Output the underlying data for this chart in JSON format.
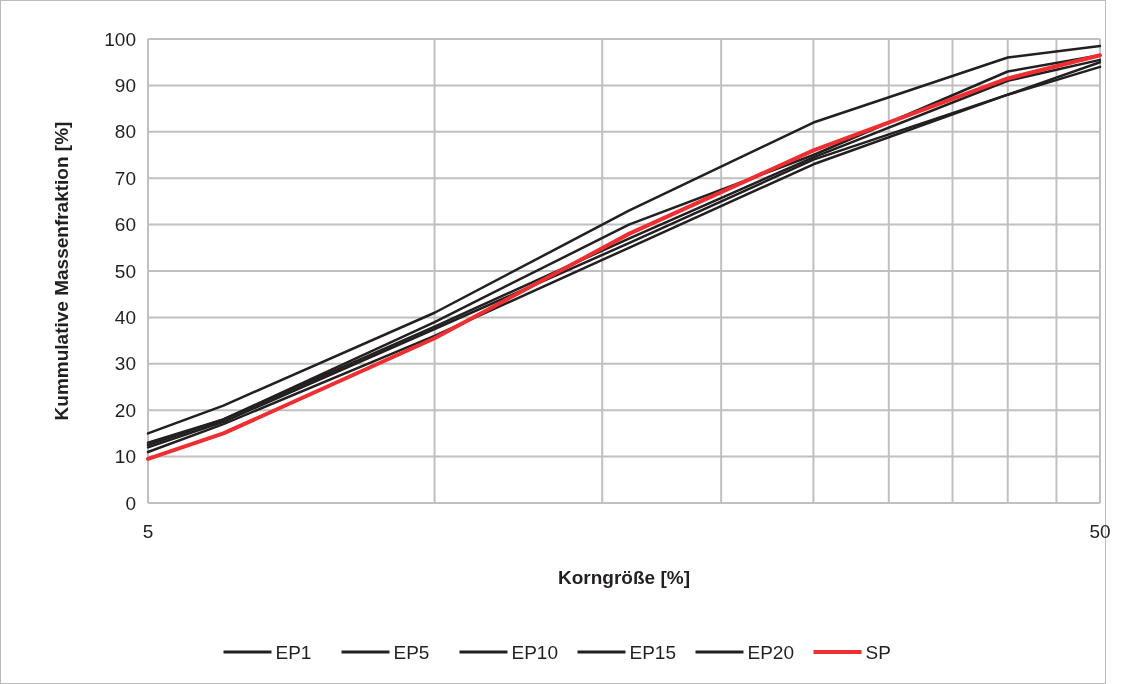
{
  "chart_data": {
    "type": "line",
    "xlabel": "Korngröße [%]",
    "ylabel": "Kummulative Massenfraktion [%]",
    "x": [
      5,
      6,
      10,
      16,
      25,
      40,
      50
    ],
    "series": [
      {
        "name": "EP1",
        "color": "#231f20",
        "values": [
          15,
          21,
          41,
          63,
          82,
          96,
          98.5
        ]
      },
      {
        "name": "EP5",
        "color": "#231f20",
        "values": [
          13,
          18,
          39,
          60,
          75,
          93,
          96.5
        ]
      },
      {
        "name": "EP10",
        "color": "#231f20",
        "values": [
          12,
          17.5,
          37.5,
          56,
          74,
          88,
          95
        ]
      },
      {
        "name": "EP15",
        "color": "#231f20",
        "values": [
          11,
          17,
          36,
          55,
          73,
          88,
          94
        ]
      },
      {
        "name": "EP20",
        "color": "#231f20",
        "values": [
          12.5,
          18,
          38,
          57,
          74.5,
          91,
          95.5
        ]
      },
      {
        "name": "SP",
        "color": "#ee2e31",
        "values": [
          9.5,
          15,
          35.5,
          58,
          76,
          91.5,
          96.5
        ]
      }
    ],
    "log": "x",
    "xlim": [
      5,
      50
    ],
    "ylim": [
      0,
      100
    ],
    "xticks": [
      5,
      {
        "value": 10,
        "label": null
      },
      {
        "value": 15,
        "label": null
      },
      {
        "value": 20,
        "label": null
      },
      {
        "value": 25,
        "label": null
      },
      {
        "value": 30,
        "label": null
      },
      {
        "value": 35,
        "label": null
      },
      {
        "value": 40,
        "label": null
      },
      {
        "value": 45,
        "label": null
      },
      50
    ],
    "yticks": [
      0,
      10,
      20,
      30,
      40,
      50,
      60,
      70,
      80,
      90,
      100
    ],
    "grid": true,
    "legend": "bottom",
    "marker": "none",
    "line_style": "solid"
  }
}
